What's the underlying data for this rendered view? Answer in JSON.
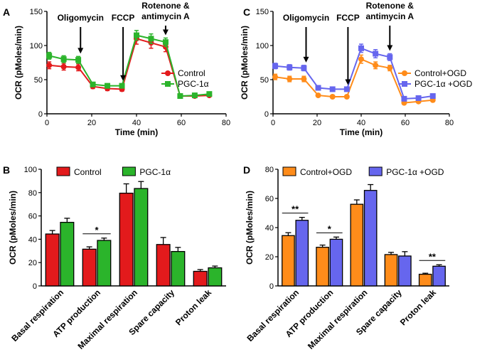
{
  "figure": {
    "domain": "Chart"
  },
  "colors": {
    "control": "#e31a1c",
    "pgc": "#2bb42b",
    "control_ogd": "#ff8c1a",
    "pgc_ogd": "#6666ee",
    "axis": "#000000"
  },
  "chart_data": [
    {
      "panel": "A",
      "type": "line",
      "title": "",
      "xlabel": "Time (min)",
      "ylabel": "OCR (pMoles/min)",
      "xlim": [
        0,
        80
      ],
      "ylim": [
        0,
        150
      ],
      "xticks": [
        0,
        20,
        40,
        60,
        80
      ],
      "yticks": [
        0,
        50,
        100,
        150
      ],
      "x": [
        1,
        7.5,
        14,
        20.5,
        27,
        33.5,
        40,
        46.5,
        53,
        59.5,
        66,
        72.5
      ],
      "series": [
        {
          "name": "Control",
          "color_key": "control",
          "marker": "circle",
          "values": [
            71,
            69,
            68,
            40,
            37,
            36,
            110,
            104,
            98,
            26,
            26,
            27
          ],
          "errors": [
            5,
            5,
            5,
            3,
            3,
            3,
            8,
            8,
            7,
            2,
            2,
            2
          ]
        },
        {
          "name": "PGC-1α",
          "color_key": "pgc",
          "marker": "square",
          "values": [
            85,
            80,
            79,
            43,
            41,
            41,
            115,
            110,
            105,
            26,
            27,
            29
          ],
          "errors": [
            5,
            5,
            5,
            3,
            3,
            3,
            7,
            7,
            6,
            2,
            2,
            2
          ]
        }
      ],
      "legend": {
        "position": "right",
        "entries": [
          "Control",
          "PGC-1α"
        ]
      },
      "annotations": [
        {
          "text": "Oligomycin",
          "x": 15
        },
        {
          "text": "FCCP",
          "x": 34
        },
        {
          "text": "Rotenone & antimycin A",
          "lines": [
            "Rotenone &",
            "antimycin A"
          ],
          "x": 53
        }
      ]
    },
    {
      "panel": "C",
      "type": "line",
      "title": "",
      "xlabel": "Time (min)",
      "ylabel": "OCR (pMoles/min)",
      "xlim": [
        0,
        80
      ],
      "ylim": [
        0,
        150
      ],
      "xticks": [
        0,
        20,
        40,
        60,
        80
      ],
      "yticks": [
        0,
        50,
        100,
        150
      ],
      "x": [
        1,
        7.5,
        14,
        20.5,
        27,
        33.5,
        40,
        46.5,
        53,
        59.5,
        66,
        72.5
      ],
      "series": [
        {
          "name": "Control+OGD",
          "color_key": "control_ogd",
          "marker": "circle",
          "values": [
            54,
            51,
            51,
            27,
            25,
            25,
            80,
            71,
            67,
            16,
            18,
            20
          ],
          "errors": [
            4,
            4,
            4,
            2,
            2,
            2,
            6,
            5,
            4,
            2,
            2,
            2
          ]
        },
        {
          "name": "PGC-1α +OGD",
          "color_key": "pgc_ogd",
          "marker": "square",
          "values": [
            70,
            68,
            67,
            38,
            36,
            36,
            96,
            88,
            83,
            22,
            23,
            26
          ],
          "errors": [
            4,
            4,
            4,
            2,
            2,
            2,
            6,
            6,
            5,
            2,
            2,
            2
          ]
        }
      ],
      "legend": {
        "position": "right",
        "entries": [
          "Control+OGD",
          "PGC-1α +OGD"
        ]
      },
      "annotations": [
        {
          "text": "Oligomycin",
          "x": 15
        },
        {
          "text": "FCCP",
          "x": 34
        },
        {
          "text": "Rotenone & antimycin A",
          "lines": [
            "Rotenone &",
            "antimycin A"
          ],
          "x": 53
        }
      ]
    },
    {
      "panel": "B",
      "type": "bar",
      "title": "",
      "xlabel": "",
      "ylabel": "OCR (pMoles/min)",
      "ylim": [
        0,
        100
      ],
      "yticks": [
        0,
        20,
        40,
        60,
        80,
        100
      ],
      "categories": [
        "Basal respiration",
        "ATP production",
        "Maximal respiration",
        "Spare capacity",
        "Proton leak"
      ],
      "series": [
        {
          "name": "Control",
          "color_key": "control",
          "values": [
            44.5,
            31.5,
            79.5,
            35.5,
            12.5
          ],
          "errors": [
            3,
            2,
            8,
            6,
            1.5
          ]
        },
        {
          "name": "PGC-1α",
          "color_key": "pgc",
          "values": [
            54.5,
            39,
            83.5,
            29.5,
            15.5
          ],
          "errors": [
            3.5,
            2,
            6,
            3.5,
            1.5
          ]
        }
      ],
      "legend": {
        "position": "top",
        "entries": [
          "Control",
          "PGC-1α"
        ]
      },
      "significance": [
        {
          "category_index": 1,
          "label": "*"
        }
      ]
    },
    {
      "panel": "D",
      "type": "bar",
      "title": "",
      "xlabel": "",
      "ylabel": "OCR (pMoles/min)",
      "ylim": [
        0,
        80
      ],
      "yticks": [
        0,
        20,
        40,
        60,
        80
      ],
      "categories": [
        "Basal respiration",
        "ATP production",
        "Maximal respiration",
        "Spare capacity",
        "Proton leak"
      ],
      "series": [
        {
          "name": "Control+OGD",
          "color_key": "control_ogd",
          "values": [
            34.5,
            26.5,
            56,
            21.5,
            8
          ],
          "errors": [
            2,
            1.5,
            3,
            1.5,
            0.7
          ]
        },
        {
          "name": "PGC-1α +OGD",
          "color_key": "pgc_ogd",
          "values": [
            45,
            32,
            65.5,
            20.5,
            13.5
          ],
          "errors": [
            2,
            1.5,
            4,
            3,
            1
          ]
        }
      ],
      "legend": {
        "position": "top",
        "entries": [
          "Control+OGD",
          "PGC-1α +OGD"
        ]
      },
      "significance": [
        {
          "category_index": 0,
          "label": "**"
        },
        {
          "category_index": 1,
          "label": "*"
        },
        {
          "category_index": 4,
          "label": "**"
        }
      ]
    }
  ]
}
